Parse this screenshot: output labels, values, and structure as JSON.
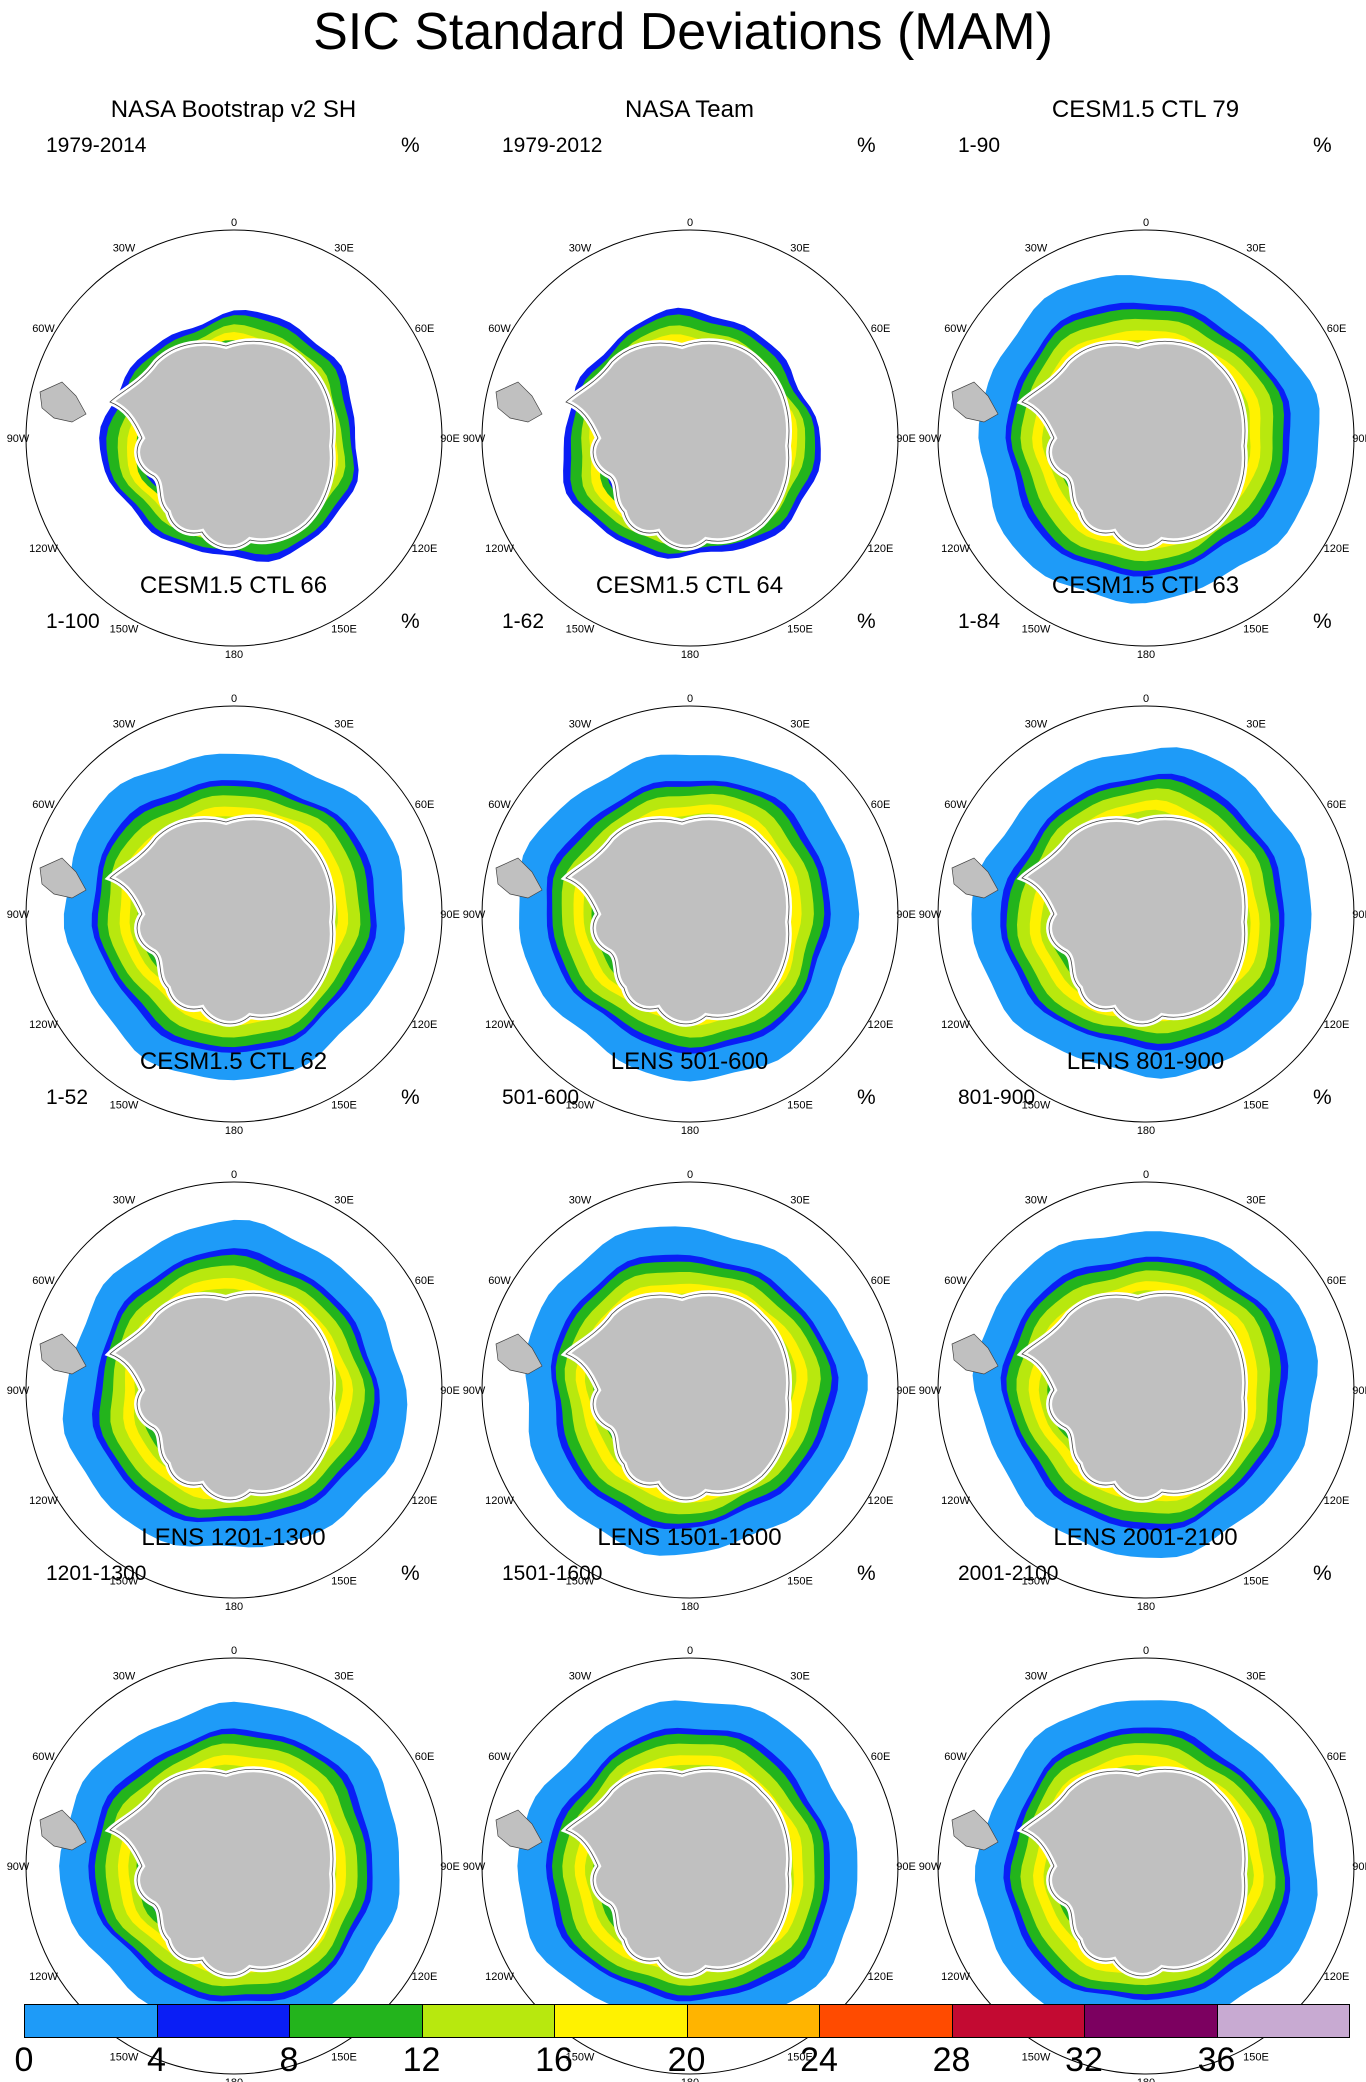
{
  "title": "SIC Standard Deviations (MAM)",
  "longitude_labels": [
    "0",
    "30E",
    "60E",
    "90E",
    "120E",
    "150E",
    "180",
    "150W",
    "120W",
    "90W",
    "60W",
    "30W"
  ],
  "panels": [
    {
      "title": "NASA Bootstrap v2 SH",
      "period": "1979-2014",
      "unit": "%"
    },
    {
      "title": "NASA Team",
      "period": "1979-2012",
      "unit": "%"
    },
    {
      "title": "CESM1.5 CTL 79",
      "period": "1-90",
      "unit": "%"
    },
    {
      "title": "CESM1.5 CTL 66",
      "period": "1-100",
      "unit": "%"
    },
    {
      "title": "CESM1.5 CTL 64",
      "period": "1-62",
      "unit": "%"
    },
    {
      "title": "CESM1.5 CTL 63",
      "period": "1-84",
      "unit": "%"
    },
    {
      "title": "CESM1.5 CTL 62",
      "period": "1-52",
      "unit": "%"
    },
    {
      "title": "LENS 501-600",
      "period": "501-600",
      "unit": "%"
    },
    {
      "title": "LENS 801-900",
      "period": "801-900",
      "unit": "%"
    },
    {
      "title": "LENS 1201-1300",
      "period": "1201-1300",
      "unit": "%"
    },
    {
      "title": "LENS 1501-1600",
      "period": "1501-1600",
      "unit": "%"
    },
    {
      "title": "LENS 2001-2100",
      "period": "2001-2100",
      "unit": "%"
    }
  ],
  "colorbar": {
    "tick_labels": [
      "0",
      "4",
      "8",
      "12",
      "16",
      "20",
      "24",
      "28",
      "32",
      "36"
    ],
    "colors": [
      "#1e9bf8",
      "#0a1ef5",
      "#23b41c",
      "#b8e80e",
      "#fff200",
      "#ffb400",
      "#ff4b00",
      "#c30a32",
      "#7c0060",
      "#c8aad2"
    ]
  }
}
